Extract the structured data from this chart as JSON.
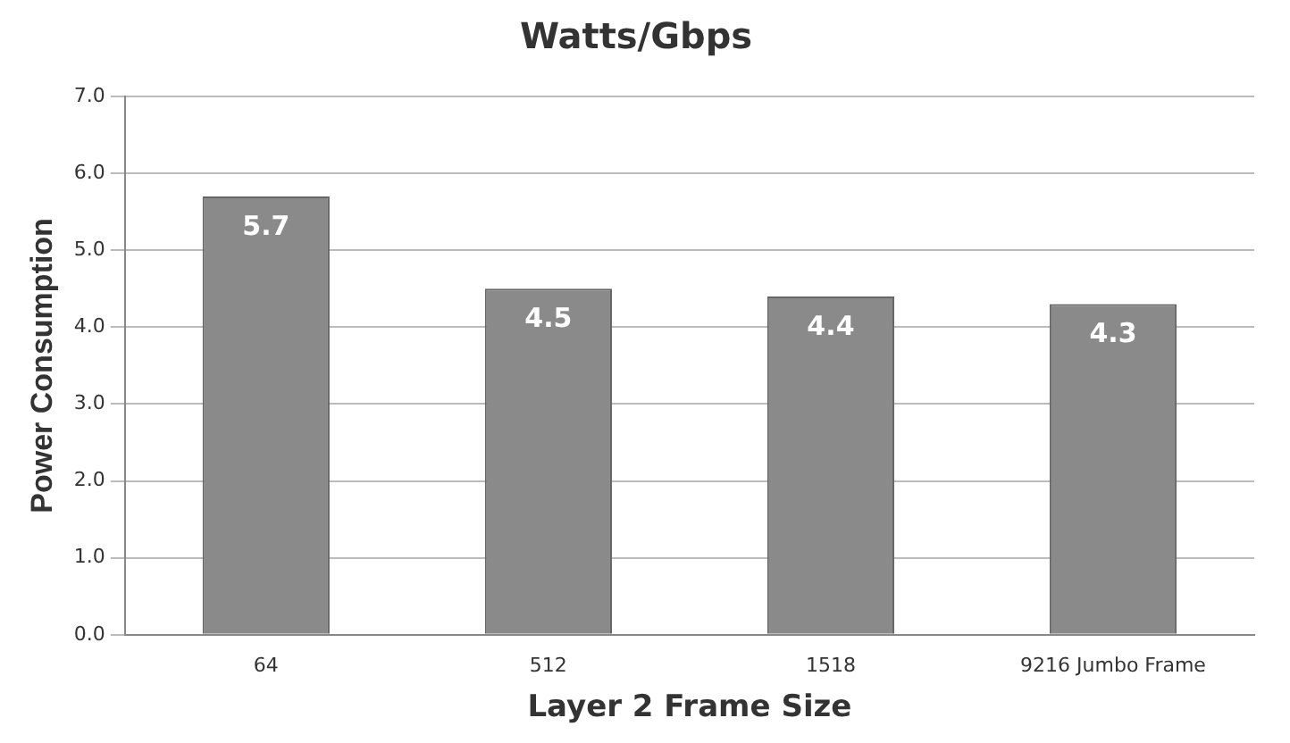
{
  "chart_data": {
    "type": "bar",
    "title": "Watts/Gbps",
    "xlabel": "Layer 2 Frame Size",
    "ylabel": "Power Consumption",
    "categories": [
      "64",
      "512",
      "1518",
      "9216 Jumbo Frame"
    ],
    "values": [
      5.7,
      4.5,
      4.4,
      4.3
    ],
    "color": "#8a8a8a",
    "ylim": [
      0,
      7
    ],
    "yticks": [
      {
        "value": 0,
        "label": "0.0"
      },
      {
        "value": 1,
        "label": "1.0"
      },
      {
        "value": 2,
        "label": "2.0"
      },
      {
        "value": 3,
        "label": "3.0"
      },
      {
        "value": 4,
        "label": "4.0"
      },
      {
        "value": 5,
        "label": "5.0"
      },
      {
        "value": 6,
        "label": "6.0"
      },
      {
        "value": 7,
        "label": "7.0"
      }
    ],
    "grid": "y",
    "data_labels": true
  }
}
